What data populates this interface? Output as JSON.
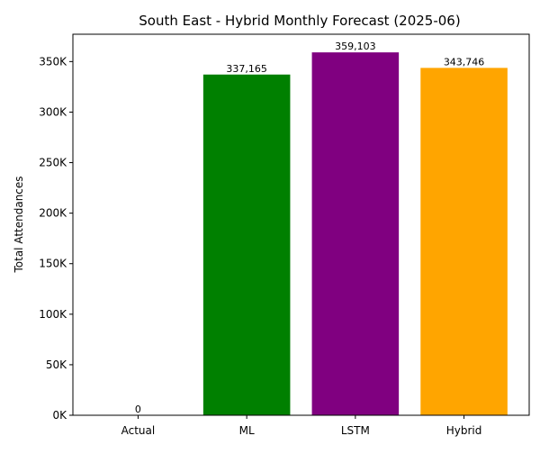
{
  "chart_data": {
    "type": "bar",
    "title": "South East - Hybrid Monthly Forecast (2025-06)",
    "xlabel": "",
    "ylabel": "Total Attendances",
    "categories": [
      "Actual",
      "ML",
      "LSTM",
      "Hybrid"
    ],
    "values": [
      0,
      337165,
      359103,
      343746
    ],
    "value_labels": [
      "0",
      "337,165",
      "359,103",
      "343,746"
    ],
    "colors": [
      "#1f77b4",
      "#008000",
      "#800080",
      "#ffa500"
    ],
    "ylim": [
      0,
      377058
    ],
    "yticks": [
      0,
      50000,
      100000,
      150000,
      200000,
      250000,
      300000,
      350000
    ],
    "ytick_labels": [
      "0K",
      "50K",
      "100K",
      "150K",
      "200K",
      "250K",
      "300K",
      "350K"
    ],
    "grid": false,
    "legend": "none"
  }
}
